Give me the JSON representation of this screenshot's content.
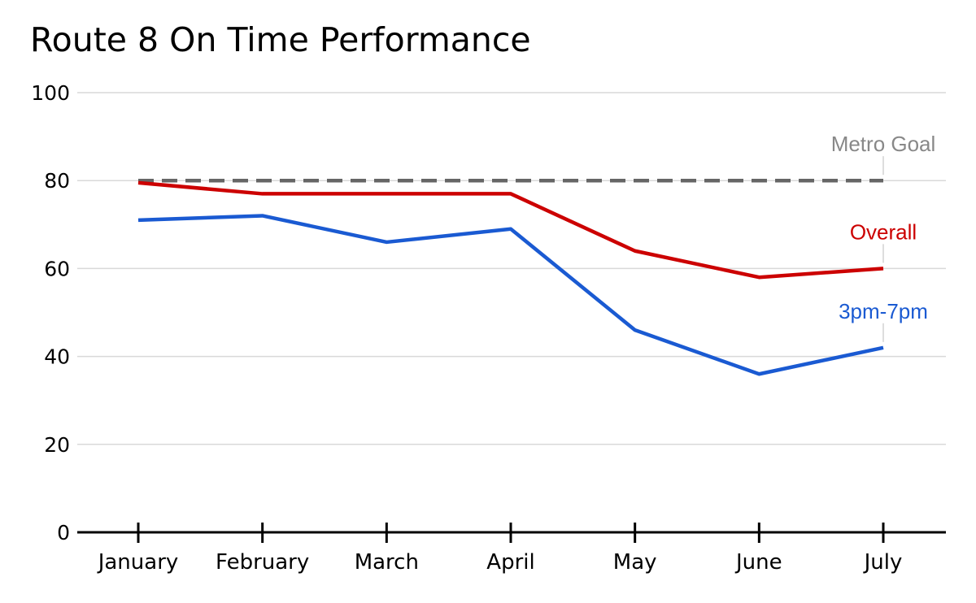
{
  "title": "Route 8 On Time Performance",
  "chart_data": {
    "type": "line",
    "title": "Route 8 On Time Performance",
    "categories": [
      "January",
      "February",
      "March",
      "April",
      "May",
      "June",
      "July"
    ],
    "series": [
      {
        "name": "Overall",
        "values": [
          79.5,
          77,
          77,
          77,
          64,
          58,
          60
        ],
        "color": "#cc0000",
        "line_style": "solid",
        "label_position": "above-line-end"
      },
      {
        "name": "3pm-7pm",
        "values": [
          71,
          72,
          66,
          69,
          46,
          36,
          42
        ],
        "color": "#1a5ad2",
        "line_style": "solid",
        "label_position": "above-line-end"
      }
    ],
    "reference_line": {
      "label": "Metro Goal",
      "value": 80,
      "color": "#666666",
      "label_color": "#888888",
      "line_style": "dashed"
    },
    "xlabel": "",
    "ylabel": "",
    "ylim": [
      0,
      100
    ],
    "y_ticks": [
      0,
      20,
      40,
      60,
      80,
      100
    ],
    "grid": "horizontal",
    "legend": "inline-annotations-at-line-end"
  },
  "style_colors": {
    "background": "#ffffff",
    "title_text": "#000000",
    "axis_text": "#000000",
    "axis_line": "#000000",
    "gridline": "#d9d9d9",
    "leader_line": "#dddddd"
  }
}
